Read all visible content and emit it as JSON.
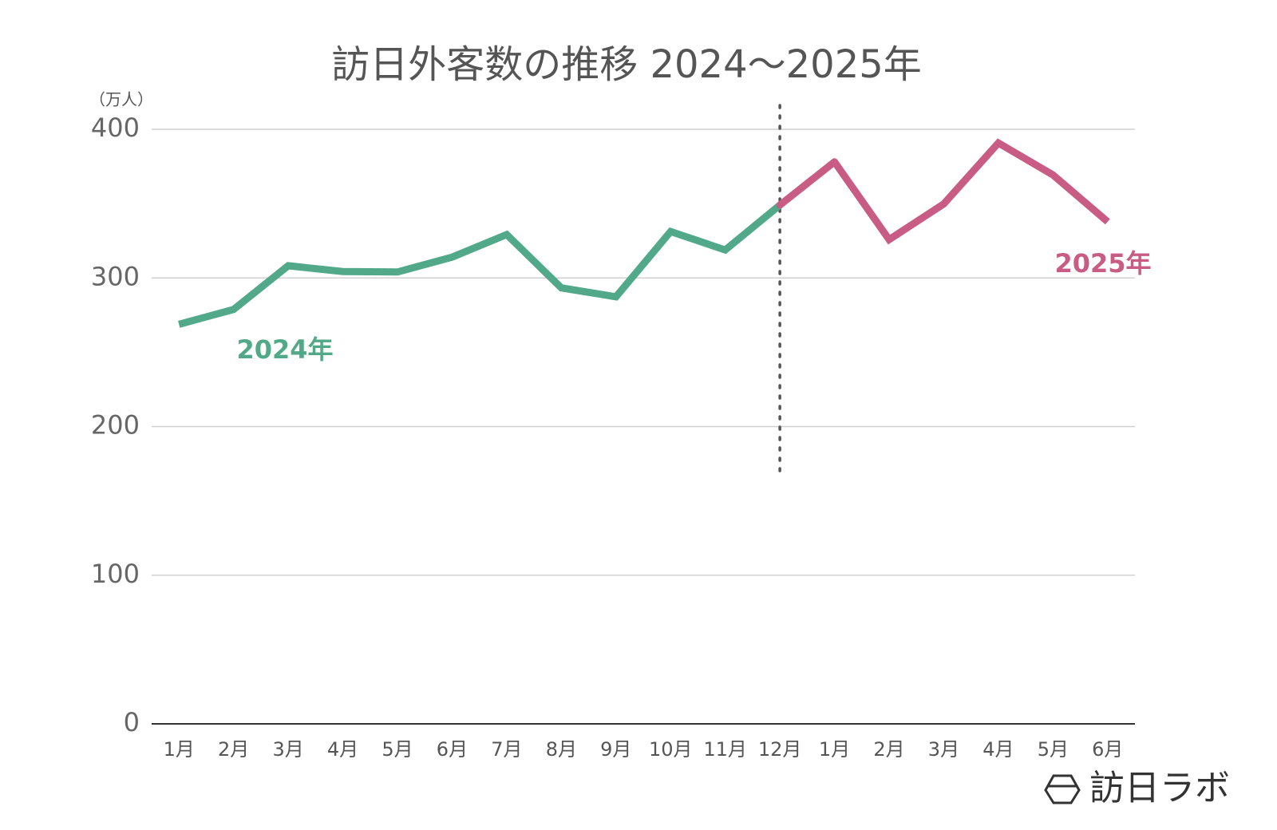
{
  "chart_data": {
    "type": "line",
    "title": "訪日外客数の推移 2024〜2025年",
    "y_unit_label": "（万人）",
    "categories": [
      "1月",
      "2月",
      "3月",
      "4月",
      "5月",
      "6月",
      "7月",
      "8月",
      "9月",
      "10月",
      "11月",
      "12月",
      "1月",
      "2月",
      "3月",
      "4月",
      "5月",
      "6月"
    ],
    "series": [
      {
        "name": "2024年",
        "color": "#52a98a",
        "values": [
          268.8,
          278.8,
          308.2,
          304.3,
          304.0,
          314.0,
          329.2,
          293.3,
          287.3,
          331.2,
          318.8,
          349.0,
          null,
          null,
          null,
          null,
          null,
          null
        ]
      },
      {
        "name": "2025年",
        "color": "#c95c84",
        "values": [
          null,
          null,
          null,
          null,
          null,
          null,
          null,
          null,
          null,
          null,
          null,
          null,
          378.1,
          325.8,
          349.8,
          390.8,
          369.3,
          337.8
        ]
      }
    ],
    "ylim": [
      0,
      400
    ],
    "yticks": [
      0,
      100,
      200,
      300,
      400
    ],
    "grid": true,
    "watermark": "訪日ラボ"
  }
}
